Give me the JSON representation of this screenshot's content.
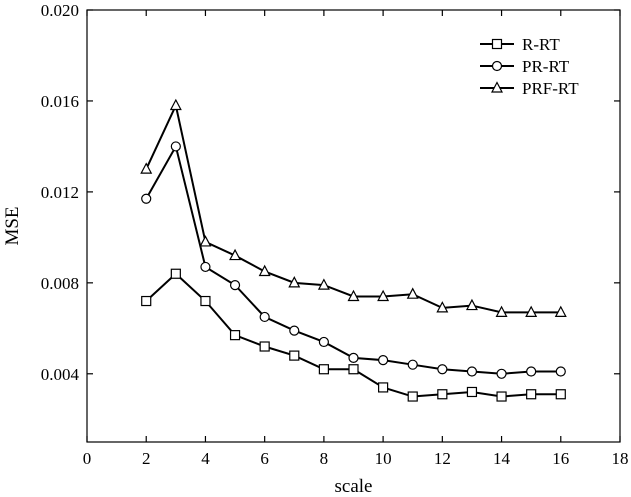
{
  "chart_data": {
    "type": "line",
    "title": "",
    "xlabel": "scale",
    "ylabel": "MSE",
    "xlim": [
      0,
      18
    ],
    "ylim": [
      0.001,
      0.02
    ],
    "xticks": [
      "0",
      "2",
      "4",
      "6",
      "8",
      "10",
      "12",
      "14",
      "16",
      "18"
    ],
    "yticks": [
      "0.004",
      "0.008",
      "0.012",
      "0.016",
      "0.020"
    ],
    "grid": false,
    "legend_position": "top-right",
    "x": [
      2,
      3,
      4,
      5,
      6,
      7,
      8,
      9,
      10,
      11,
      12,
      13,
      14,
      15,
      16
    ],
    "series": [
      {
        "name": "R-RT",
        "marker": "square",
        "values": [
          0.0072,
          0.0084,
          0.0072,
          0.0057,
          0.0052,
          0.0048,
          0.0042,
          0.0042,
          0.0034,
          0.003,
          0.0031,
          0.0032,
          0.003,
          0.0031,
          0.0031
        ]
      },
      {
        "name": "PR-RT",
        "marker": "circle",
        "values": [
          0.0117,
          0.014,
          0.0087,
          0.0079,
          0.0065,
          0.0059,
          0.0054,
          0.0047,
          0.0046,
          0.0044,
          0.0042,
          0.0041,
          0.004,
          0.0041,
          0.0041
        ]
      },
      {
        "name": "PRF-RT",
        "marker": "triangle",
        "values": [
          0.013,
          0.0158,
          0.0098,
          0.0092,
          0.0085,
          0.008,
          0.0079,
          0.0074,
          0.0074,
          0.0075,
          0.0069,
          0.007,
          0.0067,
          0.0067,
          0.0067
        ]
      }
    ]
  }
}
